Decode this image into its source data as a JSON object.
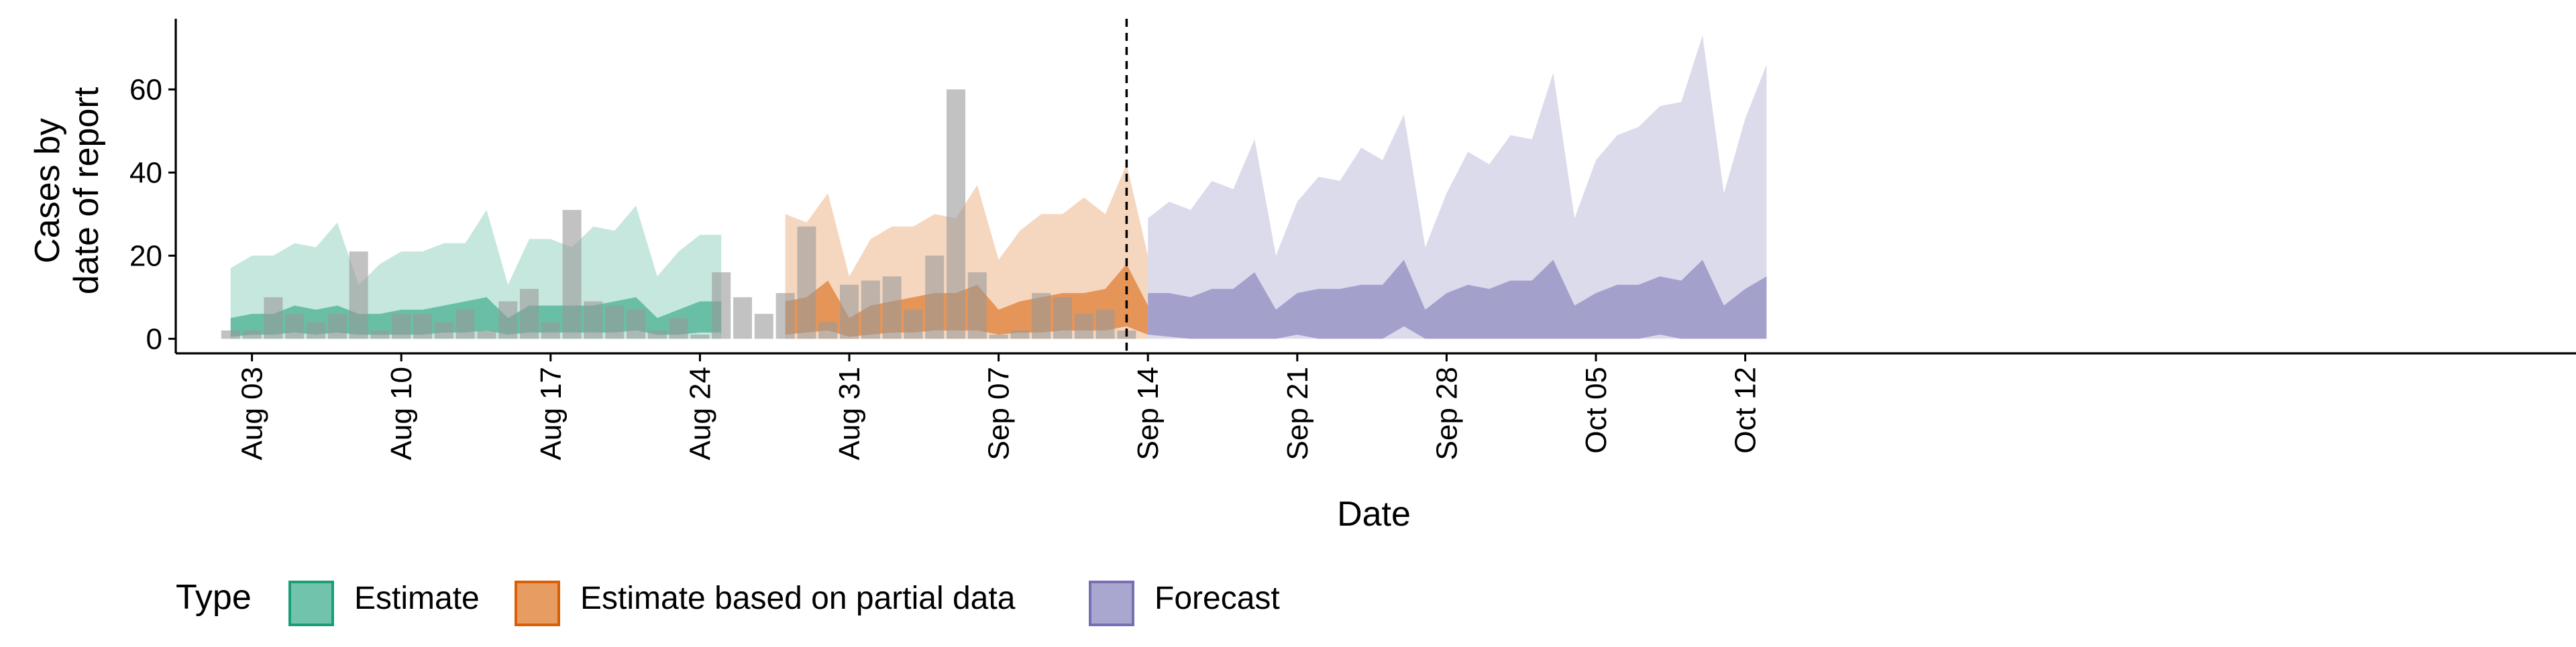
{
  "chart_data": {
    "type": "area",
    "xlabel": "Date",
    "ylabel_lines": [
      "Cases by",
      "date of report"
    ],
    "ylim": [
      -3.5,
      77
    ],
    "yticks": [
      0,
      20,
      40,
      60
    ],
    "x_start": "2020-08-01",
    "x_end": "2020-10-18",
    "x_ticks": [
      {
        "date": "2020-08-03",
        "label": "Aug 03"
      },
      {
        "date": "2020-08-10",
        "label": "Aug 10"
      },
      {
        "date": "2020-08-17",
        "label": "Aug 17"
      },
      {
        "date": "2020-08-24",
        "label": "Aug 24"
      },
      {
        "date": "2020-08-31",
        "label": "Aug 31"
      },
      {
        "date": "2020-09-07",
        "label": "Sep 07"
      },
      {
        "date": "2020-09-14",
        "label": "Sep 14"
      },
      {
        "date": "2020-09-21",
        "label": "Sep 21"
      },
      {
        "date": "2020-09-28",
        "label": "Sep 28"
      },
      {
        "date": "2020-10-05",
        "label": "Oct 05"
      },
      {
        "date": "2020-10-12",
        "label": "Oct 12"
      }
    ],
    "vline_date": "2020-09-13",
    "legend": {
      "title": "Type",
      "placement": "bottom",
      "entries": [
        {
          "label": "Estimate",
          "fill": "#1b9e77",
          "stroke": "#1b9e77"
        },
        {
          "label": "Estimate based on partial data",
          "fill": "#d95f02",
          "stroke": "#d95f02"
        },
        {
          "label": "Forecast",
          "fill": "#7570b3",
          "stroke": "#7570b3"
        }
      ]
    },
    "reported_cases": {
      "start_date": "2020-08-02",
      "values": [
        2,
        2,
        10,
        6,
        4,
        6,
        21,
        2,
        6,
        6,
        4,
        7,
        2,
        9,
        12,
        4,
        31,
        9,
        8,
        7,
        2,
        5,
        1,
        16,
        10,
        6,
        11,
        27,
        4,
        13,
        14,
        15,
        7,
        20,
        60,
        16,
        1,
        2,
        11,
        10,
        6,
        7,
        2
      ]
    },
    "series": [
      {
        "name": "Estimate",
        "color": "#1b9e77",
        "start_date": "2020-08-02",
        "outer_upper": [
          17,
          20,
          20,
          23,
          22,
          28,
          13,
          18,
          21,
          21,
          23,
          23,
          31,
          13,
          24,
          24,
          22,
          27,
          26,
          32,
          15,
          21,
          25,
          25
        ],
        "inner_upper": [
          5,
          6,
          6,
          8,
          7,
          8,
          6,
          6,
          7,
          7,
          8,
          9,
          10,
          5,
          8,
          8,
          8,
          8,
          9,
          10,
          5,
          7,
          9,
          9
        ],
        "inner_lower": [
          0.5,
          1,
          1,
          1.5,
          1,
          1.5,
          1,
          1,
          1,
          1,
          1.5,
          1.5,
          2,
          1,
          1.5,
          1.5,
          1.5,
          1.5,
          1.5,
          2,
          1,
          1,
          1.5,
          1.5
        ],
        "outer_lower": [
          0,
          0,
          0,
          0,
          0,
          0,
          0,
          0,
          0,
          0,
          0,
          0,
          0,
          0,
          0,
          0,
          0,
          0,
          0,
          0,
          0,
          0,
          0,
          0
        ]
      },
      {
        "name": "Estimate based on partial data",
        "color": "#d95f02",
        "start_date": "2020-08-28",
        "outer_upper": [
          30,
          28,
          35,
          15,
          24,
          27,
          27,
          30,
          29,
          37,
          19,
          26,
          30,
          30,
          34,
          30,
          42,
          20
        ],
        "inner_upper": [
          9,
          10,
          14,
          5,
          8,
          9,
          10,
          11,
          11,
          13,
          7,
          9,
          10,
          11,
          11,
          12,
          18,
          8
        ],
        "inner_lower": [
          1,
          1.5,
          2,
          0.5,
          1,
          1.5,
          1.5,
          2,
          2,
          2,
          1,
          1.5,
          1.5,
          2,
          2,
          2,
          3,
          1
        ],
        "outer_lower": [
          0,
          0,
          0,
          0,
          0,
          0,
          0,
          0,
          0,
          0,
          0,
          0,
          0,
          0,
          0,
          0,
          0,
          0
        ]
      },
      {
        "name": "Forecast",
        "color": "#7570b3",
        "start_date": "2020-09-14",
        "outer_upper": [
          29,
          33,
          31,
          38,
          36,
          48,
          20,
          33,
          39,
          38,
          46,
          43,
          54,
          22,
          35,
          45,
          42,
          49,
          48,
          64,
          29,
          43,
          49,
          51,
          56,
          57,
          73,
          35,
          53,
          66
        ],
        "inner_upper": [
          11,
          11,
          10,
          12,
          12,
          16,
          7,
          11,
          12,
          12,
          13,
          13,
          19,
          7,
          11,
          13,
          12,
          14,
          14,
          19,
          8,
          11,
          13,
          13,
          15,
          14,
          19,
          8,
          12,
          15
        ],
        "inner_lower": [
          1,
          0.5,
          0,
          0,
          0,
          0,
          0,
          1,
          0,
          0,
          0,
          0,
          3,
          0,
          0,
          0,
          0,
          0,
          0,
          0,
          0,
          0,
          0,
          0,
          1,
          0,
          0,
          0,
          0,
          0
        ],
        "outer_lower": [
          0,
          0,
          0,
          0,
          0,
          0,
          0,
          0,
          0,
          0,
          0,
          0,
          0,
          0,
          0,
          0,
          0,
          0,
          0,
          0,
          0,
          0,
          0,
          0,
          0,
          0,
          0,
          0,
          0,
          0
        ]
      }
    ]
  }
}
